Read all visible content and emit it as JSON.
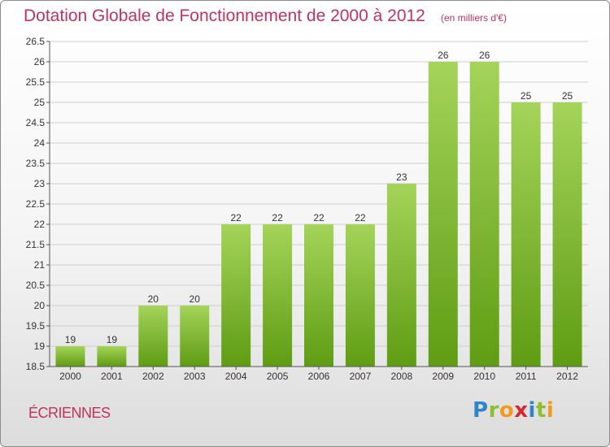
{
  "title": "Dotation Globale de Fonctionnement de 2000 à 2012",
  "subtitle": "(en milliers d'€)",
  "town": "ÉCRIENNES",
  "logo": {
    "letters": [
      "P",
      "r",
      "o",
      "x",
      "i",
      "t",
      "i"
    ],
    "colors": [
      "#2e86c8",
      "#8dbf2e",
      "#f39a1e",
      "#d8262f",
      "#2e86c8",
      "#8dbf2e",
      "#f39a1e"
    ]
  },
  "colors": {
    "bar_top": "#a4d45a",
    "bar_bottom": "#5f9c13",
    "title": "#c0335f"
  },
  "chart_data": {
    "type": "bar",
    "categories": [
      "2000",
      "2001",
      "2002",
      "2003",
      "2004",
      "2005",
      "2006",
      "2007",
      "2008",
      "2009",
      "2010",
      "2011",
      "2012"
    ],
    "values": [
      19,
      19,
      20,
      20,
      22,
      22,
      22,
      22,
      23,
      26,
      26,
      25,
      25
    ],
    "data_labels": [
      "19",
      "19",
      "20",
      "20",
      "22",
      "22",
      "22",
      "22",
      "23",
      "26",
      "26",
      "25",
      "25"
    ],
    "ylim": [
      18.5,
      26.5
    ],
    "yticks": [
      "18.5",
      "19",
      "19.5",
      "20",
      "20.5",
      "21",
      "21.5",
      "22",
      "22.5",
      "23",
      "23.5",
      "24",
      "24.5",
      "25",
      "25.5",
      "26",
      "26.5"
    ],
    "title": "Dotation Globale de Fonctionnement de 2000 à 2012",
    "xlabel": "",
    "ylabel": "",
    "grid": true
  }
}
